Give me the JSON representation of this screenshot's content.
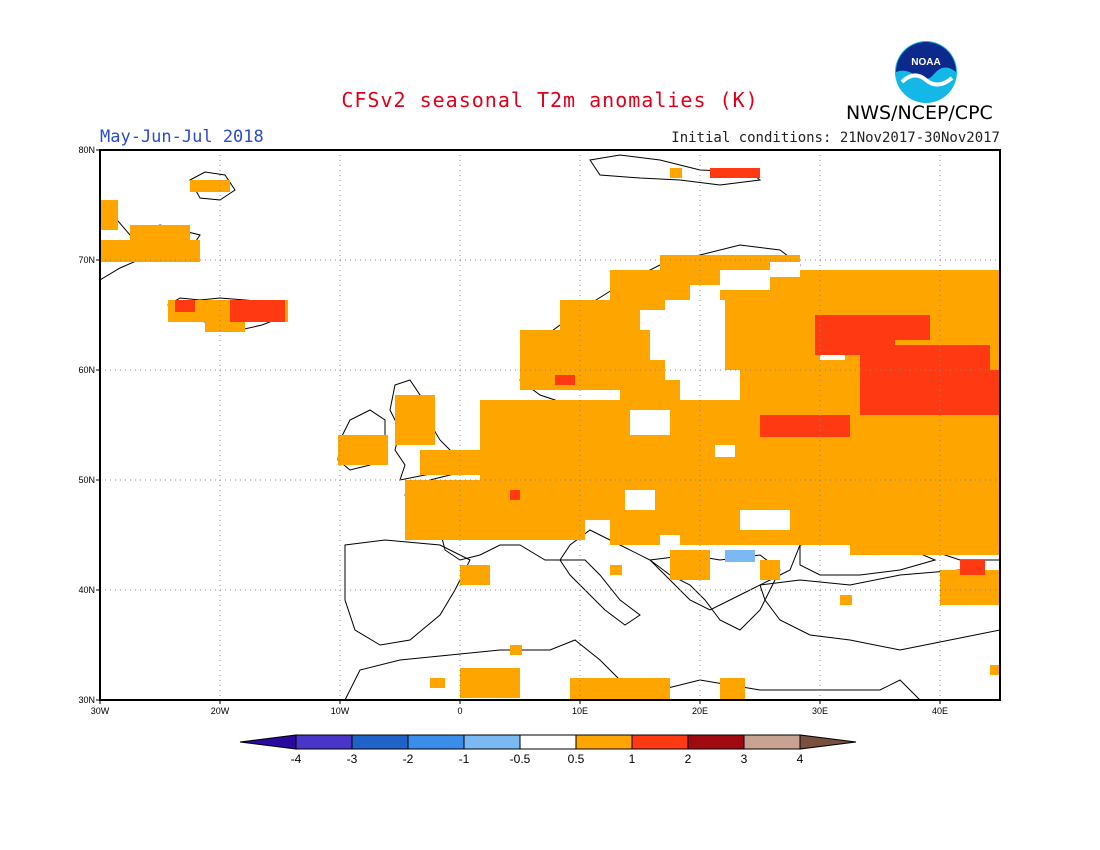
{
  "header": {
    "title": "CFSv2 seasonal T2m anomalies (K)",
    "season": "May-Jun-Jul 2018",
    "initial_conditions": "Initial conditions: 21Nov2017-30Nov2017",
    "agency": "NWS/NCEP/CPC",
    "logo_text": "NOAA"
  },
  "map": {
    "lon_range": [
      -30,
      45
    ],
    "lat_range": [
      30,
      80
    ],
    "lon_ticks": [
      {
        "lon": -30,
        "label": "30W"
      },
      {
        "lon": -20,
        "label": "20W"
      },
      {
        "lon": -10,
        "label": "10W"
      },
      {
        "lon": 0,
        "label": "0"
      },
      {
        "lon": 10,
        "label": "10E"
      },
      {
        "lon": 20,
        "label": "20E"
      },
      {
        "lon": 30,
        "label": "30E"
      },
      {
        "lon": 40,
        "label": "40E"
      }
    ],
    "lat_ticks": [
      {
        "lat": 80,
        "label": "80N"
      },
      {
        "lat": 70,
        "label": "70N"
      },
      {
        "lat": 60,
        "label": "60N"
      },
      {
        "lat": 50,
        "label": "50N"
      },
      {
        "lat": 40,
        "label": "40N"
      },
      {
        "lat": 30,
        "label": "30N"
      }
    ],
    "grid": true,
    "anomaly_colors": {
      "0.5-1": "#ffa500",
      "1-2": "#ff3a12",
      "-1--0.5": "#7bb9f2"
    }
  },
  "colorbar": {
    "boundaries": [
      "-4",
      "-3",
      "-2",
      "-1",
      "-0.5",
      "0.5",
      "1",
      "2",
      "3",
      "4"
    ],
    "colors": [
      "#2a0a9e",
      "#4a35c9",
      "#1f63c8",
      "#3a8de8",
      "#7bb9f2",
      "#ffffff",
      "#ffa500",
      "#ff3a12",
      "#a00a10",
      "#c9a392",
      "#7a4f3e"
    ]
  }
}
